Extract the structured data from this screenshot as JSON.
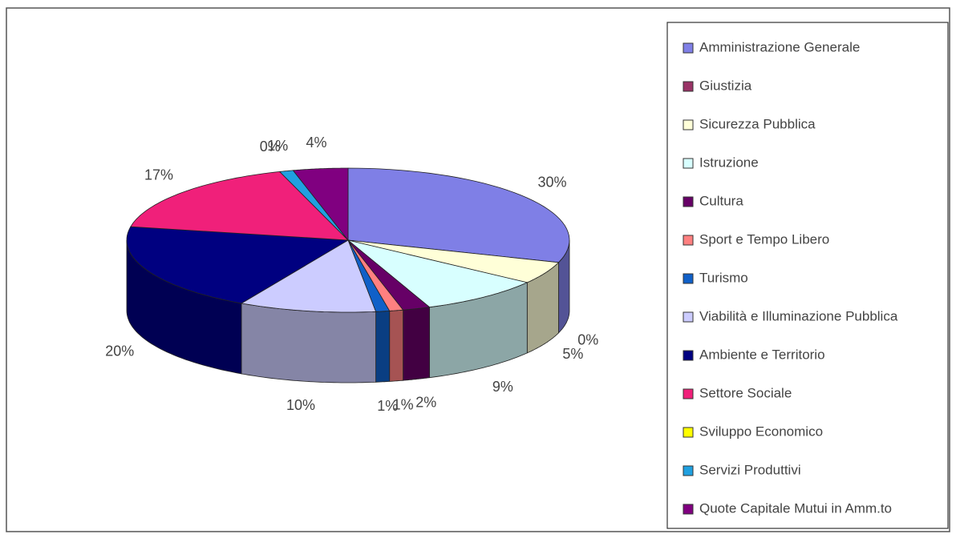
{
  "chart_data": {
    "type": "pie",
    "categories": [
      "Amministrazione Generale",
      "Giustizia",
      "Sicurezza Pubblica",
      "Istruzione",
      "Cultura",
      "Sport e Tempo Libero",
      "Turismo",
      "Viabilità e Illuminazione Pubblica",
      "Ambiente e Territorio",
      "Settore Sociale",
      "Sviluppo Economico",
      "Servizi Produttivi",
      "Quote Capitale Mutui in Amm.to"
    ],
    "values": [
      30,
      0,
      5,
      9,
      2,
      1,
      1,
      10,
      20,
      17,
      0,
      1,
      4
    ],
    "value_labels": [
      "30%",
      "0%",
      "5%",
      "9%",
      "2%",
      "1%",
      "1%",
      "10%",
      "20%",
      "17%",
      "0%",
      "1%",
      "4%"
    ],
    "colors": [
      "#7f7fe6",
      "#993366",
      "#ffffd8",
      "#d8ffff",
      "#660066",
      "#ff8080",
      "#1060c8",
      "#ccccff",
      "#000080",
      "#f0207a",
      "#ffff00",
      "#20a0e0",
      "#800080"
    ],
    "legend": "right"
  }
}
